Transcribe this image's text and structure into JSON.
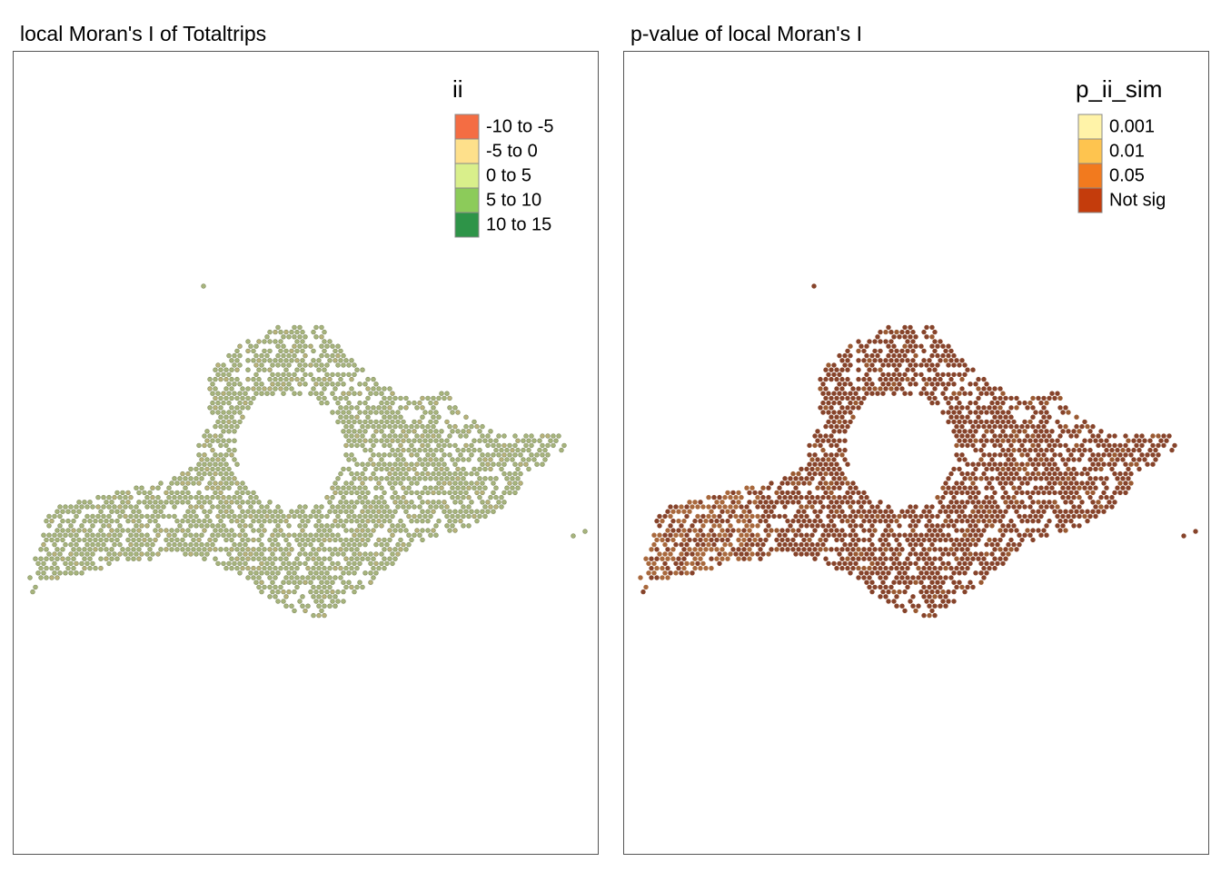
{
  "panels": [
    {
      "title": "local Moran's I of Totaltrips",
      "legend": {
        "title": "ii",
        "items": [
          {
            "label": "-10 to -5",
            "color": "#f46d43"
          },
          {
            "label": "-5 to 0",
            "color": "#fee08b"
          },
          {
            "label": "0 to 5",
            "color": "#d9ef8b"
          },
          {
            "label": "5 to 10",
            "color": "#8ccb5a"
          },
          {
            "label": "10 to 15",
            "color": "#2e9448"
          }
        ]
      }
    },
    {
      "title": "p-value of local Moran's I",
      "legend": {
        "title": "p_ii_sim",
        "items": [
          {
            "label": "0.001",
            "color": "#fff3a8"
          },
          {
            "label": "0.01",
            "color": "#fec44f"
          },
          {
            "label": "0.05",
            "color": "#f27a1e"
          },
          {
            "label": "Not sig",
            "color": "#c43c0c"
          }
        ]
      }
    }
  ]
}
